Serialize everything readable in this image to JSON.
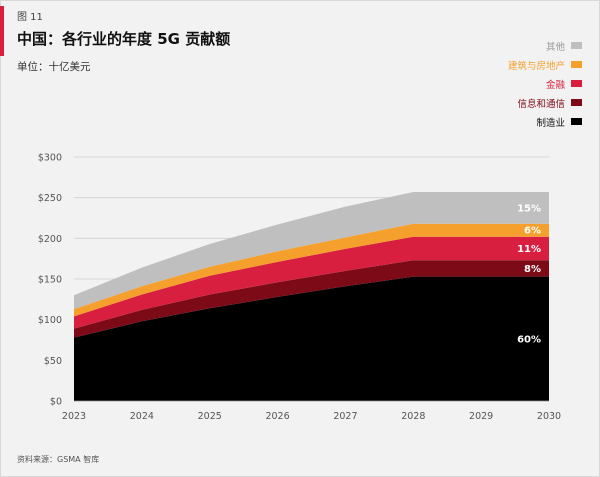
{
  "header": {
    "figure_label": "图 11",
    "title": "中国：各行业的年度 5G 贡献额",
    "unit": "单位：十亿美元"
  },
  "footer": {
    "source": "资料来源：GSMA 智库"
  },
  "legend": [
    {
      "name": "其他",
      "color": "#bfbfbf"
    },
    {
      "name": "建筑与房地产",
      "color": "#f5a02c"
    },
    {
      "name": "金融",
      "color": "#d81f3f"
    },
    {
      "name": "信息和通信",
      "color": "#7d0a17"
    },
    {
      "name": "制造业",
      "color": "#000000"
    }
  ],
  "chart_data": {
    "type": "area",
    "stacked": true,
    "title": "中国：各行业的年度 5G 贡献额",
    "ylabel": "单位：十亿美元",
    "x": [
      "2023",
      "2024",
      "2025",
      "2026",
      "2027",
      "2028",
      "2029",
      "2030"
    ],
    "ylim": [
      0,
      300
    ],
    "yticks": [
      0,
      50,
      100,
      150,
      200,
      250,
      300
    ],
    "ytick_labels": [
      "$0",
      "$50",
      "$100",
      "$150",
      "$200",
      "$250",
      "$300"
    ],
    "grid": true,
    "legend_position": "top-right",
    "series": [
      {
        "name": "制造业",
        "color": "#000000",
        "values": [
          78,
          98,
          114,
          128,
          141,
          153,
          153,
          153
        ]
      },
      {
        "name": "信息和通信",
        "color": "#7d0a17",
        "values": [
          11,
          14,
          17,
          18,
          19,
          20,
          20,
          20
        ]
      },
      {
        "name": "金融",
        "color": "#d81f3f",
        "values": [
          15,
          19,
          23,
          25,
          27,
          29,
          29,
          29
        ]
      },
      {
        "name": "建筑与房地产",
        "color": "#f5a02c",
        "values": [
          9,
          10,
          11,
          13,
          14,
          16,
          16,
          16
        ]
      },
      {
        "name": "其他",
        "color": "#bfbfbf",
        "values": [
          17,
          23,
          28,
          33,
          38,
          39,
          39,
          39
        ]
      }
    ],
    "annotations": [
      {
        "series": "其他",
        "text": "15%"
      },
      {
        "series": "建筑与房地产",
        "text": "6%"
      },
      {
        "series": "金融",
        "text": "11%"
      },
      {
        "series": "信息和通信",
        "text": "8%"
      },
      {
        "series": "制造业",
        "text": "60%"
      }
    ]
  }
}
